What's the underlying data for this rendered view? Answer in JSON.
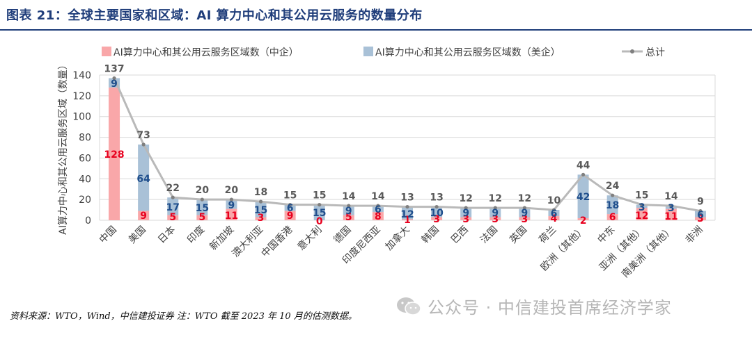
{
  "title": "图表 21：全球主要国家和区域：AI 算力中心和其公用云服务的数量分布",
  "source": "资料来源：WTO，Wind，中信建投证券 注：WTO 截至 2023 年 10 月的估测数据。",
  "watermark": "公众号 · 中信建投首席经济学家",
  "colors": {
    "cn": "#f9a7a9",
    "us": "#a9c1d7",
    "total": "#b9b9b9",
    "cn_label": "#e8001e",
    "us_label": "#1f4e8c",
    "total_label": "#595959"
  },
  "chart_data": {
    "type": "bar",
    "stacked": true,
    "categories": [
      "中国",
      "美国",
      "日本",
      "印度",
      "新加坡",
      "澳大利亚",
      "中国香港",
      "意大利",
      "德国",
      "印度尼西亚",
      "加拿大",
      "韩国",
      "巴西",
      "法国",
      "英国",
      "荷兰",
      "欧洲（其他）",
      "中东",
      "亚洲（其他）",
      "南美洲（其他）",
      "非洲"
    ],
    "series": [
      {
        "name": "AI算力中心和其公用云服务区域数（中企）",
        "values": [
          128,
          9,
          5,
          5,
          11,
          3,
          9,
          0,
          5,
          8,
          1,
          3,
          3,
          3,
          3,
          4,
          2,
          6,
          12,
          11,
          3
        ]
      },
      {
        "name": "AI算力中心和其公用云服务区域数（美企）",
        "values": [
          9,
          64,
          17,
          15,
          9,
          15,
          6,
          15,
          9,
          6,
          12,
          10,
          9,
          9,
          9,
          6,
          42,
          18,
          3,
          3,
          6
        ]
      }
    ],
    "line": {
      "name": "总计",
      "values": [
        137,
        73,
        22,
        20,
        20,
        18,
        15,
        15,
        14,
        14,
        13,
        13,
        12,
        12,
        12,
        10,
        44,
        24,
        15,
        14,
        9
      ]
    },
    "ylabel": "AI算力中心和其公用云服务区域（数量）",
    "xlabel": "",
    "ylim": [
      0,
      140
    ],
    "yticks": [
      0,
      20,
      40,
      60,
      80,
      100,
      120,
      140
    ],
    "legend_position": "top",
    "grid": true
  }
}
